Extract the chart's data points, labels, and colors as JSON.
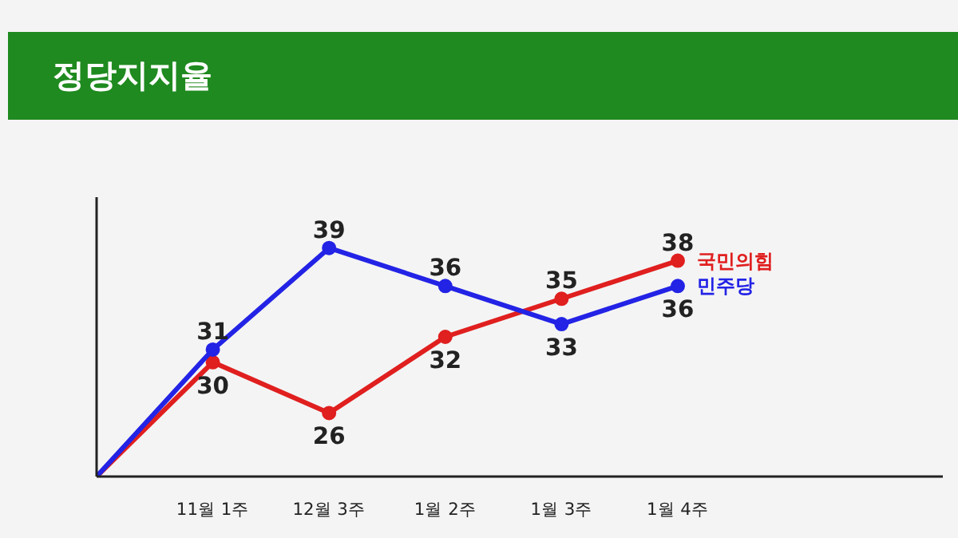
{
  "chart_data": {
    "type": "line",
    "title": "정당지지율",
    "categories": [
      null,
      "11월 1주",
      "12월 3주",
      "1월 2주",
      "1월 3주",
      "1월 4주"
    ],
    "series": [
      {
        "name": "국민의힘",
        "color": "#e01f1f",
        "values": [
          21,
          30,
          26,
          32,
          35,
          38
        ],
        "value_labels": [
          null,
          "30",
          "26",
          "32",
          "35",
          "38"
        ]
      },
      {
        "name": "민주당",
        "color": "#2323e6",
        "values": [
          21,
          31,
          39,
          36,
          33,
          36
        ],
        "value_labels": [
          null,
          "31",
          "39",
          "36",
          "33",
          "36"
        ]
      }
    ],
    "ylim": [
      21,
      43
    ],
    "tick_labels": "x",
    "marker": "circle",
    "line_style": "solid"
  }
}
